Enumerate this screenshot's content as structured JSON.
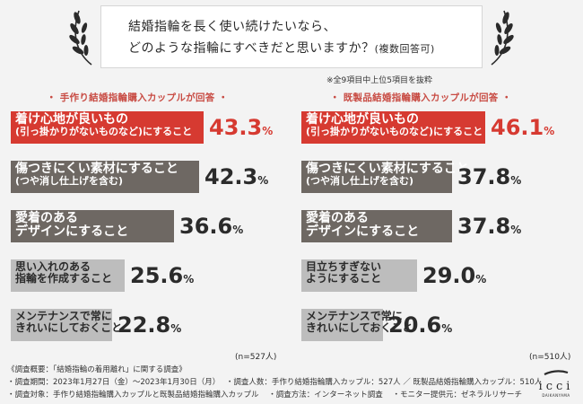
{
  "header": {
    "line1": "結婚指輪を長く使い続けたいなら、",
    "line2": "どのような指輪にすべきだと思いますか？",
    "line2_small": "(複数回答可)"
  },
  "note": "※全9項目中上位5項目を抜粋",
  "colors": {
    "accent": "#d63a31",
    "dark": "#6e6863",
    "light": "#bdbdbd",
    "title_red": "#c84b43"
  },
  "chart_data": [
    {
      "type": "bar",
      "title": "・ 手作り結婚指輪購入カップルが回答 ・",
      "n_label": "(n=527人)",
      "categories": [
        [
          "着け心地が良いもの",
          "(引っ掛かりがないものなど)にすること"
        ],
        [
          "傷つきにくい素材にすること",
          "(つや消し仕上げを含む)"
        ],
        [
          "愛着のある",
          "デザインにすること"
        ],
        [
          "思い入れのある",
          "指輪を作成すること"
        ],
        [
          "メンテナンスで常に",
          "きれいにしておくこと"
        ]
      ],
      "values": [
        43.3,
        42.3,
        36.6,
        25.6,
        22.8
      ],
      "value_labels": [
        [
          "43.3",
          "%"
        ],
        [
          "42.3",
          "%"
        ],
        [
          "36.6",
          "%"
        ],
        [
          "25.6",
          "%"
        ],
        [
          "22.8",
          "%"
        ]
      ],
      "unit": "%"
    },
    {
      "type": "bar",
      "title": "・ 既製品結婚指輪購入カップルが回答 ・",
      "n_label": "(n=510人)",
      "categories": [
        [
          "着け心地が良いもの",
          "(引っ掛かりがないものなど)にすること"
        ],
        [
          "傷つきにくい素材にすること",
          "(つや消し仕上げを含む)"
        ],
        [
          "愛着のある",
          "デザインにすること"
        ],
        [
          "目立ちすぎない",
          "ようにすること"
        ],
        [
          "メンテナンスで常に",
          "きれいにしておくこと"
        ]
      ],
      "values": [
        46.1,
        37.8,
        37.8,
        29.0,
        20.6
      ],
      "value_labels": [
        [
          "46.1",
          "%"
        ],
        [
          "37.8",
          "%"
        ],
        [
          "37.8",
          "%"
        ],
        [
          "29.0",
          "%"
        ],
        [
          "20.6",
          "%"
        ]
      ],
      "unit": "%"
    }
  ],
  "footer": {
    "line1": "《調査概要：「結婚指輪の着用離れ」に関する調査》",
    "line2a": "・調査期間：2023年1月27日（金）〜2023年1月30日（月）",
    "line2b": "・調査人数：手作り結婚指輪購入カップル：527人 ／ 既製品結婚指輪購入カップル：510人",
    "line3a": "・調査対象：手作り結婚指輪購入カップルと既製品結婚指輪購入カップル",
    "line3b": "・調査方法：インターネット調査",
    "line3c": "・モニター提供元：ゼネラルリサーチ"
  },
  "logo": {
    "word": "icci",
    "sub": "DAIKANYAMA"
  }
}
